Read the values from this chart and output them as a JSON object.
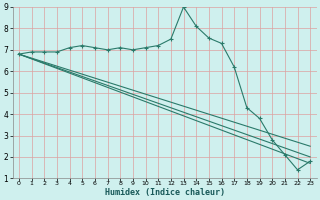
{
  "xlabel": "Humidex (Indice chaleur)",
  "ylabel": "",
  "bg_color": "#cff0ee",
  "grid_color": "#dda0a0",
  "line_color": "#2a7a6a",
  "xlim": [
    -0.5,
    23.5
  ],
  "ylim": [
    1,
    9
  ],
  "xticks": [
    0,
    1,
    2,
    3,
    4,
    5,
    6,
    7,
    8,
    9,
    10,
    11,
    12,
    13,
    14,
    15,
    16,
    17,
    18,
    19,
    20,
    21,
    22,
    23
  ],
  "yticks": [
    1,
    2,
    3,
    4,
    5,
    6,
    7,
    8,
    9
  ],
  "series1_x": [
    0,
    1,
    2,
    3,
    4,
    5,
    6,
    7,
    8,
    9,
    10,
    11,
    12,
    13,
    14,
    15,
    16,
    17,
    18,
    19,
    20,
    21,
    22,
    23
  ],
  "series1_y": [
    6.8,
    6.9,
    6.9,
    6.9,
    7.1,
    7.2,
    7.1,
    7.0,
    7.1,
    7.0,
    7.1,
    7.2,
    7.5,
    9.0,
    8.1,
    7.55,
    7.3,
    6.2,
    4.3,
    3.8,
    2.8,
    2.1,
    1.4,
    1.8
  ],
  "series2_x": [
    0,
    23
  ],
  "series2_y": [
    6.8,
    2.5
  ],
  "series3_x": [
    0,
    23
  ],
  "series3_y": [
    6.8,
    2.0
  ],
  "series4_x": [
    0,
    23
  ],
  "series4_y": [
    6.8,
    1.7
  ]
}
